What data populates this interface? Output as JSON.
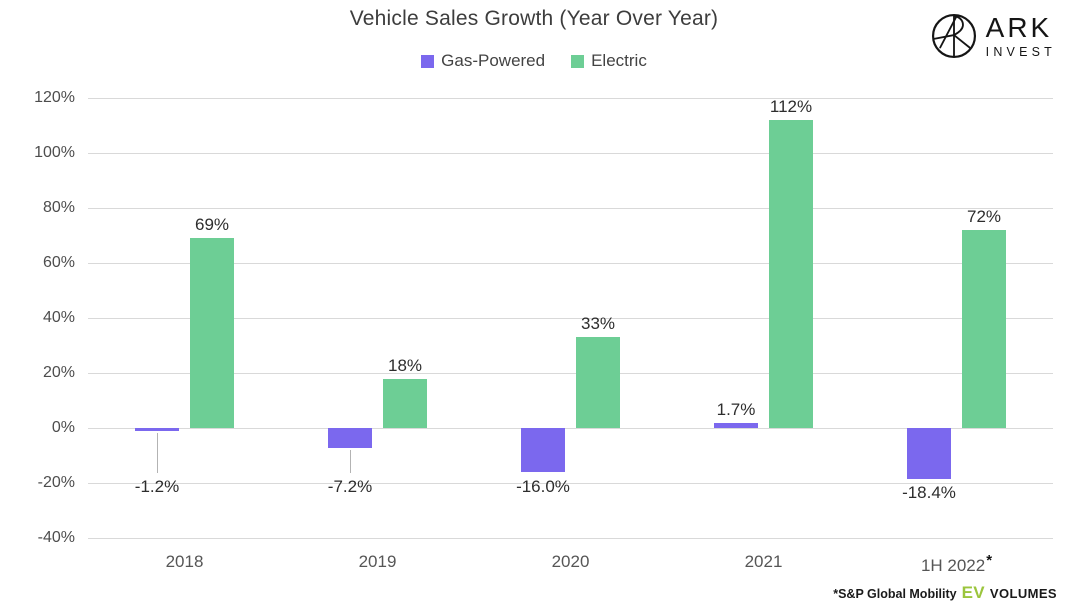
{
  "title": "Vehicle Sales Growth (Year Over Year)",
  "logo": {
    "name": "ARK Invest",
    "line1": "ARK",
    "line2": "INVEST"
  },
  "footnote": {
    "source": "*S&P Global Mobility",
    "ev": "EV",
    "volumes": "VOLUMES",
    "ev_color": "#9BC53D"
  },
  "colors": {
    "gas": "#7B68EE",
    "electric": "#6DCE95"
  },
  "chart_data": {
    "type": "bar",
    "title": "Vehicle Sales Growth (Year Over Year)",
    "categories": [
      "2018",
      "2019",
      "2020",
      "2021",
      "1H 2022"
    ],
    "xtick_suffix": [
      "",
      "",
      "",
      "",
      "*"
    ],
    "series": [
      {
        "name": "Gas-Powered",
        "color": "#7B68EE",
        "values": [
          -1.2,
          -7.2,
          -16.0,
          1.7,
          -18.4
        ],
        "labels": [
          "-1.2%",
          "-7.2%",
          "-16.0%",
          "1.7%",
          "-18.4%"
        ]
      },
      {
        "name": "Electric",
        "color": "#6DCE95",
        "values": [
          69,
          18,
          33,
          112,
          72
        ],
        "labels": [
          "69%",
          "18%",
          "33%",
          "112%",
          "72%"
        ]
      }
    ],
    "ylim": [
      -40,
      120
    ],
    "ytick_step": 20,
    "ytick_labels": [
      "120%",
      "100%",
      "80%",
      "60%",
      "40%",
      "20%",
      "0%",
      "-20%",
      "-40%"
    ],
    "grid": true,
    "legend_position": "top"
  }
}
